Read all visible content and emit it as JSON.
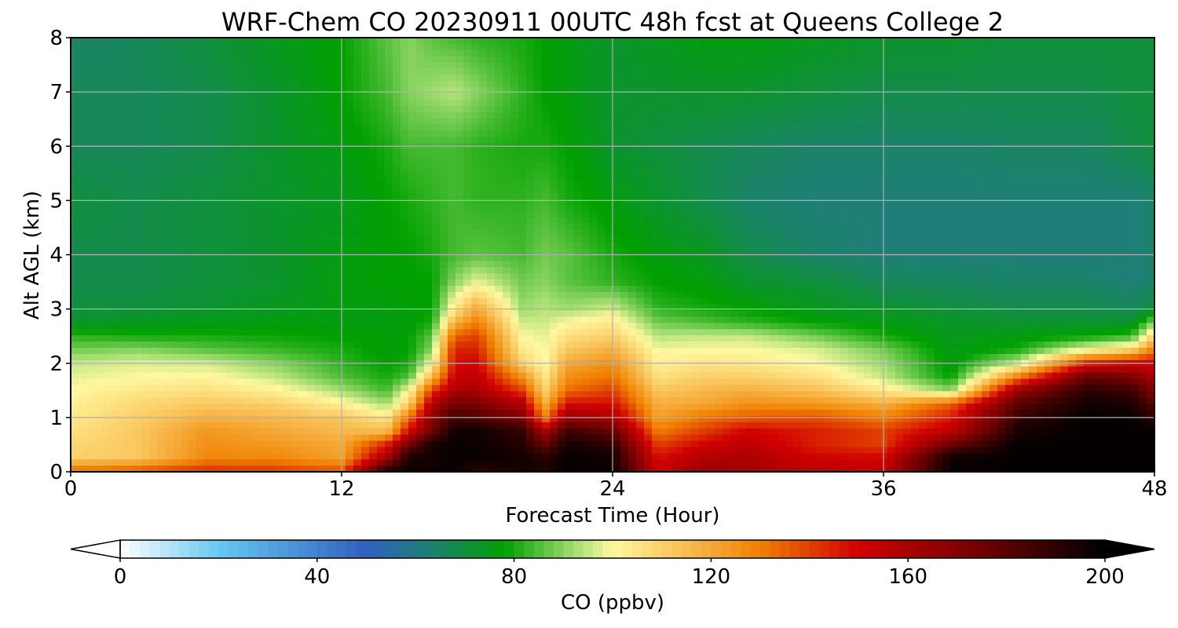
{
  "chart_data": {
    "type": "heatmap",
    "title": "WRF-Chem CO  20230911 00UTC 48h fcst at Queens College 2",
    "xlabel": "Forecast Time (Hour)",
    "ylabel": "Alt AGL (km)",
    "xlim": [
      0,
      48
    ],
    "ylim": [
      0,
      8
    ],
    "x_ticks": [
      "0",
      "12",
      "24",
      "36",
      "48"
    ],
    "y_ticks": [
      "0",
      "1",
      "2",
      "3",
      "4",
      "5",
      "6",
      "7",
      "8"
    ],
    "grid": true,
    "colorbar": {
      "label": "CO  (ppbv)",
      "min": 0,
      "max": 200,
      "ticks": [
        "0",
        "40",
        "80",
        "120",
        "160",
        "200"
      ],
      "extend": "both",
      "orientation": "horizontal",
      "stops": [
        {
          "v": 0,
          "c": "#ffffff"
        },
        {
          "v": 20,
          "c": "#66c8f0"
        },
        {
          "v": 50,
          "c": "#3060c0"
        },
        {
          "v": 62,
          "c": "#1f7f78"
        },
        {
          "v": 78,
          "c": "#00a000"
        },
        {
          "v": 92,
          "c": "#a0dc70"
        },
        {
          "v": 100,
          "c": "#fff8a0"
        },
        {
          "v": 130,
          "c": "#f08000"
        },
        {
          "v": 150,
          "c": "#d00000"
        },
        {
          "v": 175,
          "c": "#700000"
        },
        {
          "v": 200,
          "c": "#000000"
        }
      ]
    },
    "field": {
      "x": [
        0,
        3,
        6,
        9,
        12,
        14,
        15,
        16,
        17,
        18,
        20,
        21,
        22,
        24,
        26,
        28,
        30,
        33,
        36,
        39,
        42,
        45,
        47,
        48
      ],
      "z": [
        0,
        0.25,
        0.5,
        0.75,
        1,
        1.25,
        1.5,
        1.75,
        2,
        2.25,
        2.5,
        2.75,
        3,
        3.5,
        4,
        5,
        6,
        7,
        8
      ],
      "values": [
        [
          134,
          138,
          144,
          142,
          138,
          196,
          196,
          196,
          198,
          189,
          196,
          192,
          199,
          198,
          152,
          164,
          160,
          156,
          154,
          198,
          199,
          199,
          199,
          199
        ],
        [
          110,
          112,
          128,
          128,
          122,
          162,
          196,
          196,
          198,
          198,
          196,
          192,
          199,
          196,
          148,
          158,
          160,
          150,
          150,
          198,
          199,
          199,
          199,
          199
        ],
        [
          108,
          112,
          126,
          124,
          120,
          145,
          175,
          195,
          198,
          197,
          192,
          178,
          195,
          190,
          140,
          150,
          155,
          145,
          140,
          176,
          199,
          199,
          199,
          199
        ],
        [
          106,
          112,
          124,
          120,
          116,
          115,
          150,
          175,
          196,
          197,
          188,
          160,
          186,
          178,
          130,
          140,
          150,
          145,
          140,
          155,
          195,
          199,
          199,
          199
        ],
        [
          104,
          110,
          118,
          116,
          112,
          105,
          133,
          168,
          186,
          182,
          172,
          130,
          165,
          160,
          122,
          132,
          136,
          138,
          130,
          146,
          188,
          199,
          198,
          190
        ],
        [
          102,
          108,
          112,
          110,
          102,
          92,
          110,
          158,
          174,
          172,
          158,
          118,
          148,
          148,
          118,
          120,
          126,
          124,
          118,
          135,
          180,
          196,
          194,
          180
        ],
        [
          100,
          104,
          106,
          102,
          92,
          84,
          100,
          140,
          160,
          160,
          140,
          110,
          133,
          140,
          112,
          116,
          118,
          114,
          104,
          90,
          165,
          190,
          186,
          170
        ],
        [
          98,
          100,
          101,
          95,
          85,
          80,
          85,
          116,
          152,
          154,
          126,
          104,
          126,
          132,
          106,
          110,
          110,
          106,
          95,
          78,
          130,
          177,
          172,
          160
        ],
        [
          95,
          97,
          96,
          90,
          82,
          78,
          80,
          100,
          148,
          150,
          110,
          100,
          120,
          126,
          102,
          105,
          104,
          100,
          92,
          76,
          96,
          145,
          150,
          150
        ],
        [
          88,
          90,
          86,
          83,
          80,
          77,
          78,
          90,
          145,
          145,
          104,
          99,
          112,
          118,
          99,
          100,
          100,
          97,
          88,
          75,
          80,
          100,
          110,
          130
        ],
        [
          82,
          80,
          80,
          79,
          78,
          77,
          78,
          86,
          135,
          140,
          100,
          98,
          106,
          110,
          94,
          95,
          95,
          88,
          80,
          74,
          76,
          78,
          82,
          110
        ],
        [
          72,
          74,
          75,
          76,
          76,
          76,
          77,
          80,
          118,
          130,
          96,
          96,
          100,
          104,
          88,
          85,
          82,
          78,
          76,
          73,
          72,
          72,
          72,
          90
        ],
        [
          70,
          70,
          72,
          74,
          76,
          76,
          77,
          78,
          104,
          120,
          92,
          94,
          92,
          96,
          82,
          80,
          78,
          74,
          72,
          70,
          68,
          68,
          66,
          70
        ],
        [
          68,
          68,
          70,
          72,
          76,
          78,
          78,
          78,
          90,
          98,
          88,
          90,
          86,
          82,
          78,
          76,
          72,
          70,
          66,
          65,
          64,
          64,
          62,
          64
        ],
        [
          68,
          68,
          70,
          72,
          76,
          78,
          78,
          80,
          84,
          86,
          84,
          88,
          86,
          80,
          76,
          74,
          68,
          64,
          62,
          62,
          62,
          62,
          62,
          64
        ],
        [
          70,
          68,
          70,
          72,
          74,
          78,
          80,
          82,
          84,
          82,
          82,
          84,
          80,
          76,
          72,
          68,
          64,
          62,
          62,
          62,
          62,
          62,
          62,
          64
        ],
        [
          66,
          66,
          68,
          72,
          76,
          80,
          84,
          84,
          84,
          82,
          80,
          80,
          78,
          72,
          70,
          68,
          66,
          64,
          64,
          64,
          65,
          65,
          68,
          70
        ],
        [
          66,
          66,
          68,
          72,
          78,
          84,
          90,
          92,
          94,
          90,
          82,
          78,
          76,
          72,
          72,
          72,
          72,
          70,
          68,
          68,
          68,
          68,
          70,
          70
        ],
        [
          64,
          66,
          70,
          74,
          78,
          86,
          90,
          86,
          84,
          82,
          80,
          78,
          76,
          72,
          74,
          76,
          76,
          74,
          72,
          72,
          70,
          70,
          70,
          70
        ]
      ]
    }
  }
}
